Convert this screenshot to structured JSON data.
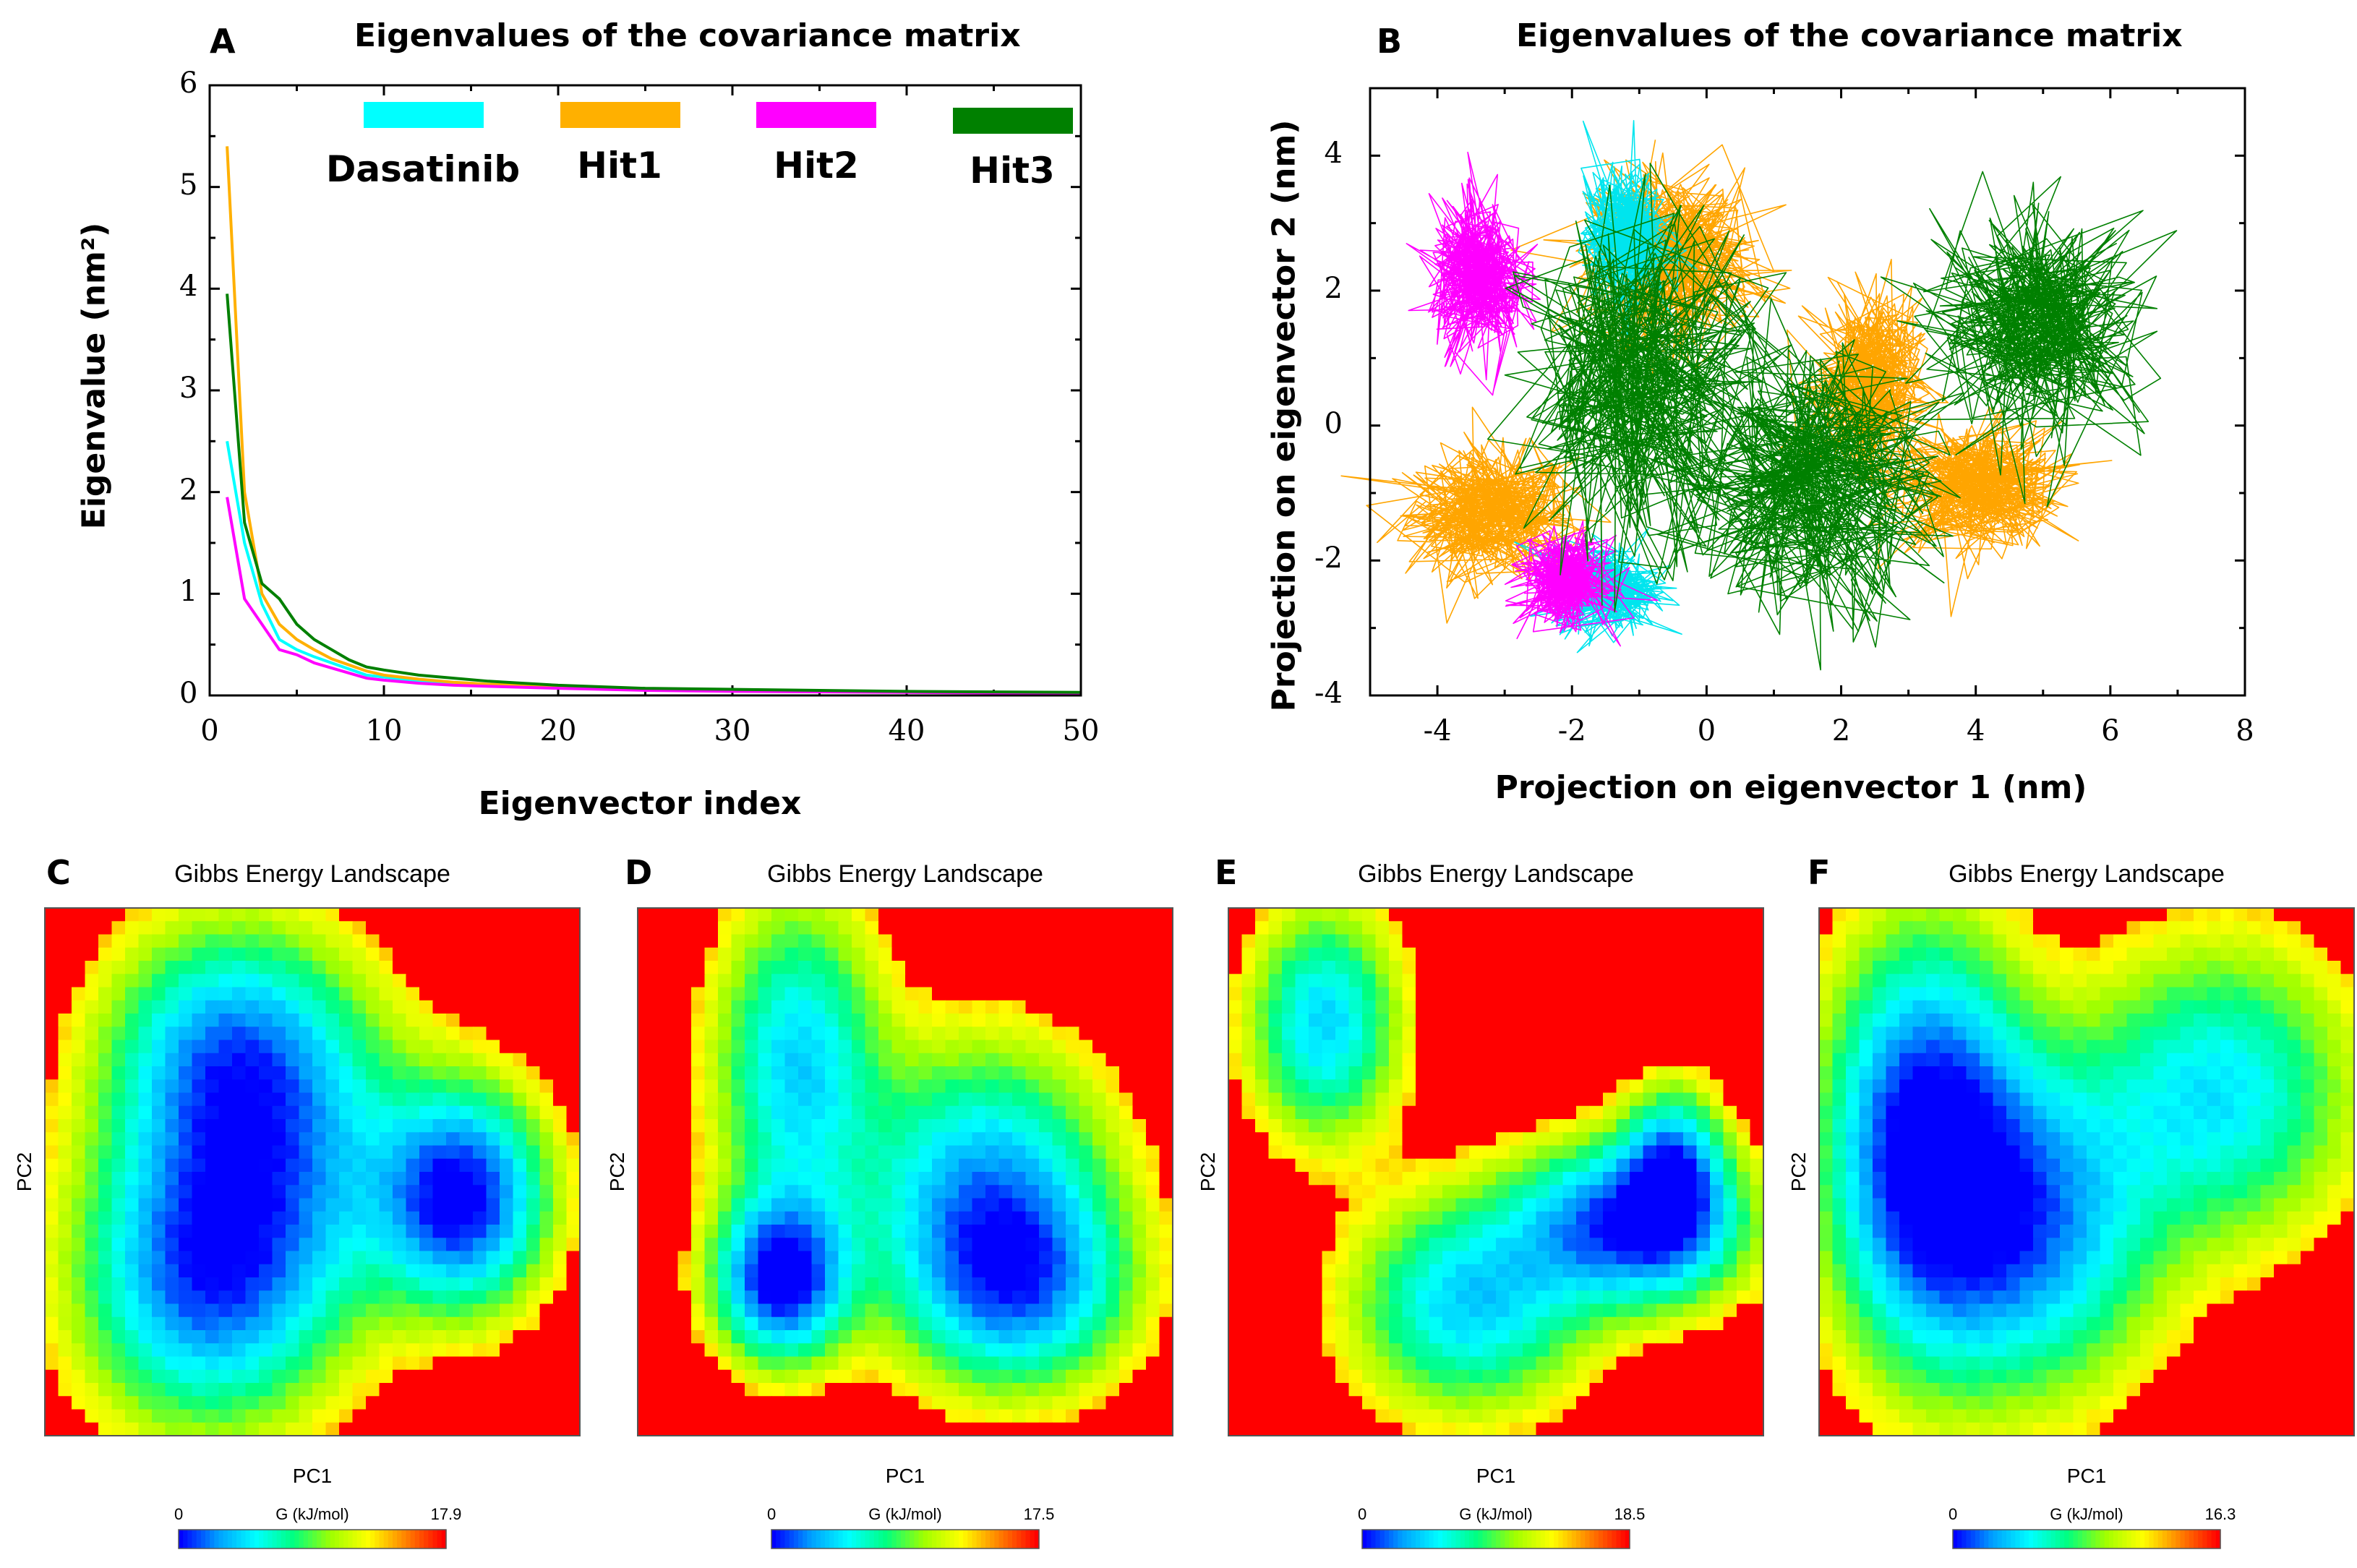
{
  "chart_data": [
    {
      "panel": "A",
      "type": "line",
      "title": "Eigenvalues of the covariance matrix",
      "xlabel": "Eigenvector index",
      "ylabel": "Eigenvalue (nm²)",
      "xlim": [
        0,
        50
      ],
      "ylim": [
        0,
        6
      ],
      "xticks": [
        "0",
        "10",
        "20",
        "30",
        "40",
        "50"
      ],
      "yticks": [
        "0",
        "1",
        "2",
        "3",
        "4",
        "5",
        "6"
      ],
      "legend": "top",
      "x": [
        1,
        2,
        3,
        4,
        5,
        6,
        7,
        8,
        9,
        10,
        12,
        14,
        16,
        18,
        20,
        25,
        30,
        35,
        40,
        45,
        50
      ],
      "series": [
        {
          "name": "Dasatinib",
          "color": "#00ffff",
          "values": [
            2.5,
            1.5,
            0.9,
            0.55,
            0.45,
            0.38,
            0.32,
            0.26,
            0.2,
            0.18,
            0.14,
            0.12,
            0.1,
            0.09,
            0.08,
            0.06,
            0.05,
            0.04,
            0.035,
            0.03,
            0.025
          ]
        },
        {
          "name": "Hit1",
          "color": "#ffb000",
          "values": [
            5.4,
            2.0,
            1.0,
            0.7,
            0.55,
            0.45,
            0.36,
            0.3,
            0.24,
            0.2,
            0.16,
            0.13,
            0.11,
            0.1,
            0.08,
            0.06,
            0.05,
            0.04,
            0.035,
            0.03,
            0.025
          ]
        },
        {
          "name": "Hit2",
          "color": "#ff00ff",
          "values": [
            1.95,
            0.95,
            0.7,
            0.45,
            0.4,
            0.32,
            0.27,
            0.22,
            0.17,
            0.15,
            0.12,
            0.1,
            0.09,
            0.08,
            0.07,
            0.05,
            0.04,
            0.035,
            0.03,
            0.025,
            0.02
          ]
        },
        {
          "name": "Hit3",
          "color": "#008000",
          "values": [
            3.95,
            1.7,
            1.1,
            0.95,
            0.7,
            0.55,
            0.45,
            0.35,
            0.28,
            0.25,
            0.2,
            0.17,
            0.14,
            0.12,
            0.1,
            0.07,
            0.06,
            0.05,
            0.04,
            0.035,
            0.03
          ]
        }
      ]
    },
    {
      "panel": "B",
      "type": "scatter",
      "title": "Eigenvalues of the covariance matrix",
      "xlabel": "Projection on eigenvector 1 (nm)",
      "ylabel": "Projection on eigenvector 2 (nm)",
      "xlim": [
        -5,
        8
      ],
      "ylim": [
        -4,
        5
      ],
      "xticks": [
        "-4",
        "-2",
        "0",
        "2",
        "4",
        "6",
        "8"
      ],
      "yticks": [
        "-4",
        "-2",
        "0",
        "2",
        "4"
      ],
      "series": [
        {
          "name": "Hit1",
          "color": "#ffa500",
          "clusters": [
            {
              "cx": -3.2,
              "cy": -1.3,
              "sx": 0.8,
              "sy": 0.6
            },
            {
              "cx": 4.0,
              "cy": -0.9,
              "sx": 0.8,
              "sy": 0.6
            },
            {
              "cx": -0.5,
              "cy": 2.5,
              "sx": 0.8,
              "sy": 0.8
            },
            {
              "cx": 2.4,
              "cy": 0.6,
              "sx": 0.5,
              "sy": 0.8
            }
          ]
        },
        {
          "name": "Dasatinib",
          "color": "#00e5ee",
          "clusters": [
            {
              "cx": -1.5,
              "cy": -2.4,
              "sx": 0.5,
              "sy": 0.4
            },
            {
              "cx": -1.2,
              "cy": 2.8,
              "sx": 0.4,
              "sy": 0.6
            }
          ]
        },
        {
          "name": "Hit2",
          "color": "#ff00ff",
          "clusters": [
            {
              "cx": -3.4,
              "cy": 2.2,
              "sx": 0.45,
              "sy": 0.7
            },
            {
              "cx": -2.1,
              "cy": -2.3,
              "sx": 0.4,
              "sy": 0.4
            }
          ]
        },
        {
          "name": "Hit3",
          "color": "#008000",
          "clusters": [
            {
              "cx": -1.0,
              "cy": 0.6,
              "sx": 1.1,
              "sy": 1.5
            },
            {
              "cx": 1.5,
              "cy": -0.8,
              "sx": 1.2,
              "sy": 1.2
            },
            {
              "cx": 5.0,
              "cy": 1.5,
              "sx": 1.0,
              "sy": 1.0
            }
          ]
        }
      ]
    },
    {
      "panel": "C",
      "type": "heatmap",
      "title": "Gibbs Energy Landscape",
      "xlabel": "PC1",
      "ylabel": "PC2",
      "colorbar": {
        "label": "G (kJ/mol)",
        "min": "0",
        "max": "17.9"
      },
      "basins": [
        {
          "x": 0.35,
          "y": 0.28,
          "sx": 0.15,
          "sy": 0.16,
          "d": 0.65
        },
        {
          "x": 0.3,
          "y": 0.7,
          "sx": 0.15,
          "sy": 0.18,
          "d": 0.75
        },
        {
          "x": 0.78,
          "y": 0.55,
          "sx": 0.1,
          "sy": 0.13,
          "d": 0.95
        },
        {
          "x": 0.45,
          "y": 0.5,
          "sx": 0.18,
          "sy": 0.2,
          "d": 0.45
        }
      ]
    },
    {
      "panel": "D",
      "type": "heatmap",
      "title": "Gibbs Energy Landscape",
      "xlabel": "PC1",
      "ylabel": "PC2",
      "colorbar": {
        "label": "G (kJ/mol)",
        "min": "0",
        "max": "17.5"
      },
      "basins": [
        {
          "x": 0.3,
          "y": 0.3,
          "sx": 0.1,
          "sy": 0.2,
          "d": 0.6
        },
        {
          "x": 0.27,
          "y": 0.7,
          "sx": 0.08,
          "sy": 0.1,
          "d": 1.0
        },
        {
          "x": 0.65,
          "y": 0.55,
          "sx": 0.15,
          "sy": 0.18,
          "d": 0.7
        },
        {
          "x": 0.72,
          "y": 0.72,
          "sx": 0.13,
          "sy": 0.12,
          "d": 0.55
        }
      ]
    },
    {
      "panel": "E",
      "type": "heatmap",
      "title": "Gibbs Energy Landscape",
      "xlabel": "PC1",
      "ylabel": "PC2",
      "colorbar": {
        "label": "G (kJ/mol)",
        "min": "0",
        "max": "18.5"
      },
      "basins": [
        {
          "x": 0.18,
          "y": 0.22,
          "sx": 0.09,
          "sy": 0.14,
          "d": 0.6
        },
        {
          "x": 0.45,
          "y": 0.75,
          "sx": 0.14,
          "sy": 0.13,
          "d": 0.6
        },
        {
          "x": 0.75,
          "y": 0.6,
          "sx": 0.14,
          "sy": 0.1,
          "d": 0.9
        },
        {
          "x": 0.83,
          "y": 0.5,
          "sx": 0.06,
          "sy": 0.1,
          "d": 0.7
        }
      ]
    },
    {
      "panel": "F",
      "type": "heatmap",
      "title": "Gibbs Energy Landscape",
      "xlabel": "PC1",
      "ylabel": "PC2",
      "colorbar": {
        "label": "G (kJ/mol)",
        "min": "0",
        "max": "16.3"
      },
      "basins": [
        {
          "x": 0.2,
          "y": 0.45,
          "sx": 0.12,
          "sy": 0.25,
          "d": 1.0
        },
        {
          "x": 0.4,
          "y": 0.6,
          "sx": 0.15,
          "sy": 0.2,
          "d": 0.7
        },
        {
          "x": 0.75,
          "y": 0.35,
          "sx": 0.16,
          "sy": 0.18,
          "d": 0.55
        }
      ]
    }
  ],
  "panel_letters": {
    "A": "A",
    "B": "B",
    "C": "C",
    "D": "D",
    "E": "E",
    "F": "F"
  },
  "colorbar_colors": [
    "#0000ff",
    "#00a0ff",
    "#00ffff",
    "#00ff80",
    "#a0ff00",
    "#ffff00",
    "#ff8000",
    "#ff0000"
  ]
}
